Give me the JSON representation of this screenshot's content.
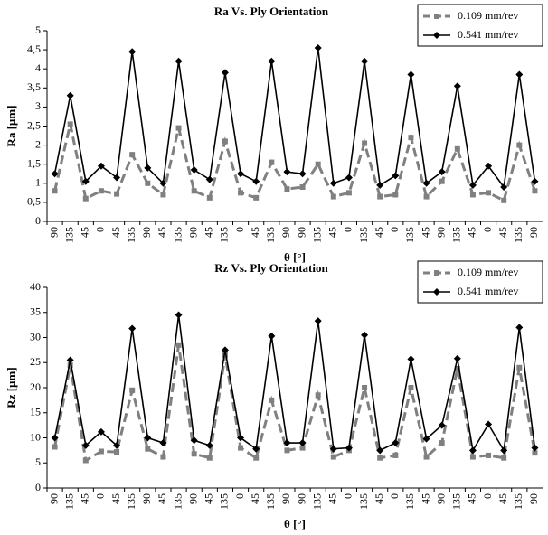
{
  "chart_data": [
    {
      "type": "line",
      "title": "Ra Vs. Ply Orientation",
      "x_label": "θ [°]",
      "y_label": "Ra [µm]",
      "categories": [
        "90",
        "135",
        "45",
        "0",
        "45",
        "135",
        "90",
        "45",
        "135",
        "90",
        "45",
        "135",
        "0",
        "45",
        "135",
        "90",
        "90",
        "135",
        "45",
        "0",
        "135",
        "45",
        "0",
        "135",
        "45",
        "90",
        "135",
        "45",
        "0",
        "45",
        "135",
        "90"
      ],
      "series": [
        {
          "name": "0.109 mm/rev",
          "color": "#808080",
          "line_style": "dashed",
          "marker": "square",
          "values": [
            0.8,
            2.55,
            0.6,
            0.8,
            0.72,
            1.75,
            1.0,
            0.7,
            2.45,
            0.8,
            0.62,
            2.1,
            0.75,
            0.62,
            1.55,
            0.85,
            0.9,
            1.5,
            0.65,
            0.75,
            2.05,
            0.65,
            0.7,
            2.2,
            0.65,
            1.05,
            1.9,
            0.7,
            0.75,
            0.55,
            2.0,
            0.8
          ]
        },
        {
          "name": "0.541 mm/rev",
          "color": "#000000",
          "line_style": "solid",
          "marker": "diamond",
          "values": [
            1.25,
            3.3,
            1.05,
            1.45,
            1.15,
            4.45,
            1.4,
            1.0,
            4.2,
            1.35,
            1.1,
            3.9,
            1.25,
            1.05,
            4.2,
            1.3,
            1.25,
            4.55,
            1.0,
            1.15,
            4.2,
            0.95,
            1.2,
            3.85,
            1.0,
            1.3,
            3.55,
            0.95,
            1.45,
            0.9,
            3.85,
            1.05
          ]
        }
      ],
      "ylim": [
        0,
        5
      ],
      "yticks": [
        0,
        {
          "value": 0.5,
          "label": "0,5"
        },
        1,
        {
          "value": 1.5,
          "label": "1,5"
        },
        2,
        {
          "value": 2.5,
          "label": "2,5"
        },
        3,
        {
          "value": 3.5,
          "label": "3,5"
        },
        4,
        {
          "value": 4.5,
          "label": "4,5"
        },
        5
      ],
      "legend": "upper right"
    },
    {
      "type": "line",
      "title": "Rz Vs. Ply Orientation",
      "x_label": "θ [°]",
      "y_label": "Rz [µm]",
      "categories": [
        "90",
        "135",
        "45",
        "0",
        "45",
        "135",
        "90",
        "45",
        "135",
        "90",
        "45",
        "135",
        "0",
        "45",
        "135",
        "90",
        "90",
        "135",
        "45",
        "0",
        "135",
        "45",
        "0",
        "135",
        "45",
        "90",
        "135",
        "45",
        "0",
        "45",
        "135",
        "90"
      ],
      "series": [
        {
          "name": "0.109 mm/rev",
          "color": "#808080",
          "line_style": "dashed",
          "marker": "square",
          "values": [
            8.2,
            24.5,
            5.5,
            7.3,
            7.2,
            19.5,
            7.8,
            6.2,
            28.5,
            6.8,
            6,
            26.5,
            8,
            6,
            17.5,
            7.5,
            8,
            18.5,
            6.2,
            7.5,
            20,
            6,
            6.5,
            20,
            6.2,
            9,
            23.8,
            6.2,
            6.5,
            6,
            24,
            7
          ]
        },
        {
          "name": "0.541 mm/rev",
          "color": "#000000",
          "line_style": "solid",
          "marker": "diamond",
          "values": [
            10,
            25.5,
            8.5,
            11.2,
            8.5,
            31.8,
            10,
            9,
            34.5,
            9.5,
            8.5,
            27.5,
            10,
            7.8,
            30.3,
            9,
            9,
            33.3,
            7.8,
            8,
            30.5,
            7.5,
            9,
            25.7,
            9.8,
            12.5,
            25.8,
            7.5,
            12.7,
            7.5,
            32,
            8
          ]
        }
      ],
      "ylim": [
        0,
        40
      ],
      "yticks": [
        0,
        5,
        10,
        15,
        20,
        25,
        30,
        35,
        40
      ],
      "legend": "upper right"
    }
  ]
}
